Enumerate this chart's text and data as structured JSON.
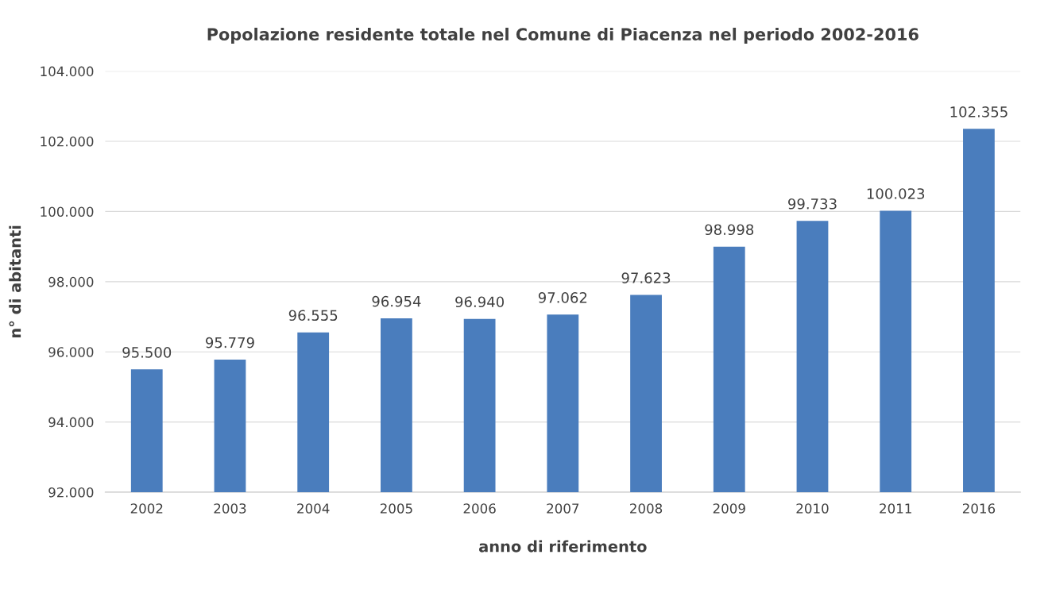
{
  "chart_data": {
    "type": "bar",
    "title": "Popolazione residente totale nel Comune di Piacenza nel periodo 2002-2016",
    "xlabel": "anno di riferimento",
    "ylabel": "n° di abitanti",
    "categories": [
      "2002",
      "2003",
      "2004",
      "2005",
      "2006",
      "2007",
      "2008",
      "2009",
      "2010",
      "2011",
      "2016"
    ],
    "values": [
      95500,
      95779,
      96555,
      96954,
      96940,
      97062,
      97623,
      98998,
      99733,
      100023,
      102355
    ],
    "value_labels": [
      "95.500",
      "95.779",
      "96.555",
      "96.954",
      "96.940",
      "97.062",
      "97.623",
      "98.998",
      "99.733",
      "100.023",
      "102.355"
    ],
    "color": "#4a7dbd",
    "ylim": [
      92000,
      104000
    ],
    "yticks": [
      {
        "value": 92000,
        "label": "92.000"
      },
      {
        "value": 94000,
        "label": "94.000"
      },
      {
        "value": 96000,
        "label": "96.000"
      },
      {
        "value": 98000,
        "label": "98.000"
      },
      {
        "value": 100000,
        "label": "100.000"
      },
      {
        "value": 102000,
        "label": "102.000"
      },
      {
        "value": 104000,
        "label": "104.000"
      }
    ],
    "grid": "y"
  }
}
